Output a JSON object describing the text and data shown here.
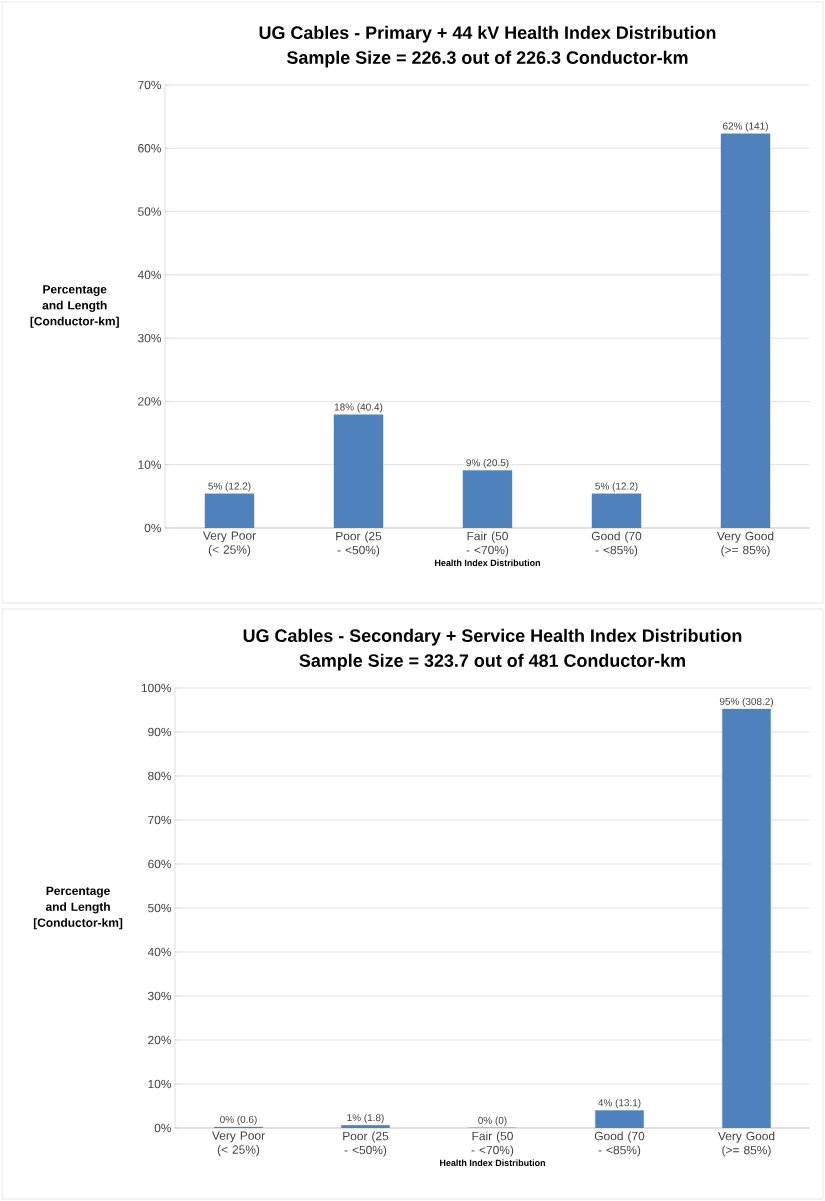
{
  "chart_data": [
    {
      "type": "bar",
      "title": "UG Cables - Primary + 44 kV Health Index Distribution",
      "subtitle": "Sample Size = 226.3 out of 226.3 Conductor-km",
      "xlabel": "Health Index Distribution",
      "ylabel": "Percentage and Length [Conductor-km]",
      "categories": [
        "Very Poor (< 25%)",
        "Poor (25 - <50%)",
        "Fair (50 - <70%)",
        "Good (70 - <85%)",
        "Very Good (>= 85%)"
      ],
      "values": [
        5.4,
        17.9,
        9.1,
        5.4,
        62.3
      ],
      "value_labels": [
        "5% (12.2)",
        "18% (40.4)",
        "9% (20.5)",
        "5% (12.2)",
        "62% (141)"
      ],
      "color": "#4f81bd",
      "ylim": [
        0,
        70
      ],
      "yticks": [
        {
          "value": 0,
          "label": "0%"
        },
        {
          "value": 10,
          "label": "10%"
        },
        {
          "value": 20,
          "label": "20%"
        },
        {
          "value": 30,
          "label": "30%"
        },
        {
          "value": 40,
          "label": "40%"
        },
        {
          "value": 50,
          "label": "50%"
        },
        {
          "value": 60,
          "label": "60%"
        },
        {
          "value": 70,
          "label": "70%"
        }
      ],
      "grid": "y"
    },
    {
      "type": "bar",
      "title": "UG Cables - Secondary + Service Health Index Distribution",
      "subtitle": "Sample Size = 323.7 out of 481 Conductor-km",
      "xlabel": "Health Index Distribution",
      "ylabel": "Percentage and Length [Conductor-km]",
      "categories": [
        "Very Poor (< 25%)",
        "Poor (25 - <50%)",
        "Fair (50 - <70%)",
        "Good (70 - <85%)",
        "Very Good (>= 85%)"
      ],
      "values": [
        0.2,
        0.6,
        0,
        4,
        95.2
      ],
      "value_labels": [
        "0% (0.6)",
        "1% (1.8)",
        "0% (0)",
        "4% (13.1)",
        "95% (308.2)"
      ],
      "color": "#4f81bd",
      "ylim": [
        0,
        100
      ],
      "yticks": [
        {
          "value": 0,
          "label": "0%"
        },
        {
          "value": 10,
          "label": "10%"
        },
        {
          "value": 20,
          "label": "20%"
        },
        {
          "value": 30,
          "label": "30%"
        },
        {
          "value": 40,
          "label": "40%"
        },
        {
          "value": 50,
          "label": "50%"
        },
        {
          "value": 60,
          "label": "60%"
        },
        {
          "value": 70,
          "label": "70%"
        },
        {
          "value": 80,
          "label": "80%"
        },
        {
          "value": 90,
          "label": "90%"
        },
        {
          "value": 100,
          "label": "100%"
        }
      ],
      "grid": "y"
    }
  ]
}
